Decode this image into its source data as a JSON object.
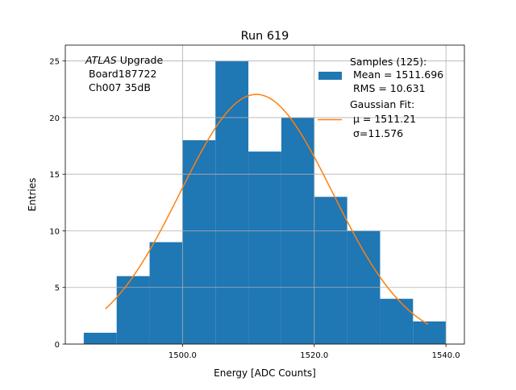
{
  "chart_data": {
    "type": "bar",
    "title": "Run 619",
    "xlabel": "Energy [ADC Counts]",
    "ylabel": "Entries",
    "xlim": [
      1482.2,
      1542.8
    ],
    "ylim": [
      0,
      26.4
    ],
    "grid": true,
    "xticks": [
      1500,
      1520,
      1540
    ],
    "xtick_labels": [
      "1500.0",
      "1520.0",
      "1540.0"
    ],
    "yticks": [
      0,
      5,
      10,
      15,
      20,
      25
    ],
    "ytick_labels": [
      "0",
      "5",
      "10",
      "15",
      "20",
      "25"
    ],
    "bin_edges": [
      1485,
      1490,
      1495,
      1500,
      1505,
      1510,
      1515,
      1520,
      1525,
      1530,
      1535,
      1540
    ],
    "values": [
      1,
      6,
      9,
      18,
      25,
      17,
      20,
      13,
      10,
      4,
      2
    ],
    "fit": {
      "type": "gaussian",
      "mu": 1511.21,
      "sigma": 11.576,
      "amplitude": 22.05,
      "x_range": [
        1488.3,
        1537.3
      ]
    },
    "colors": {
      "hist": "#1f77b4",
      "fit": "#ff7f0e",
      "grid": "#b0b0b0"
    },
    "annotation": {
      "line1_italic": "ATLAS",
      "line1_rest": " Upgrade",
      "line2": "Board187722",
      "line3": "Ch007 35dB"
    },
    "legend": {
      "placement": "top-right",
      "hist": [
        "Samples (125):",
        " Mean = 1511.696",
        " RMS = 10.631"
      ],
      "fit": [
        "Gaussian Fit:",
        " μ = 1511.21",
        " σ=11.576"
      ]
    }
  }
}
